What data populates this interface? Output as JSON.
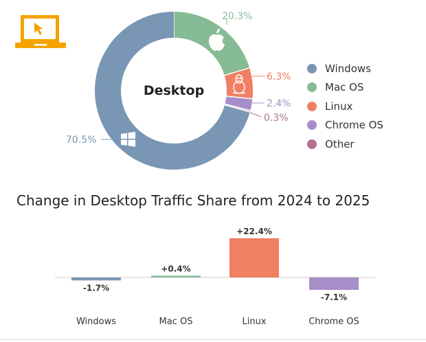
{
  "colors": {
    "windows": "#7997b4",
    "macos": "#87bb96",
    "linux": "#f07f63",
    "chromeos": "#a88dc8",
    "other": "#b37090",
    "laptop_orange": "#f5a300"
  },
  "icons": [
    "laptop-cursor-icon",
    "apple-icon",
    "linux-tux-icon",
    "windows-icon"
  ],
  "donut": {
    "center_label": "Desktop",
    "callouts": {
      "windows": "70.5%",
      "macos": "20.3%",
      "linux": "6.3%",
      "chromeos": "2.4%",
      "other": "0.3%"
    }
  },
  "legend": {
    "items": [
      {
        "label": "Windows",
        "color": "#7997b4"
      },
      {
        "label": "Mac OS",
        "color": "#87bb96"
      },
      {
        "label": "Linux",
        "color": "#f07f63"
      },
      {
        "label": "Chrome OS",
        "color": "#a88dc8"
      },
      {
        "label": "Other",
        "color": "#b37090"
      }
    ]
  },
  "bar_section": {
    "title": "Change in Desktop Traffic Share from 2024 to 2025"
  },
  "chart_data": [
    {
      "type": "pie",
      "title": "Desktop",
      "categories": [
        "Windows",
        "Mac OS",
        "Linux",
        "Chrome OS",
        "Other"
      ],
      "values": [
        70.5,
        20.3,
        6.3,
        2.4,
        0.3
      ],
      "value_labels": [
        "70.5%",
        "20.3%",
        "6.3%",
        "2.4%",
        "0.3%"
      ],
      "colors": [
        "#7997b4",
        "#87bb96",
        "#f07f63",
        "#a88dc8",
        "#b37090"
      ],
      "donut": true,
      "legend": "right"
    },
    {
      "type": "bar",
      "title": "Change in Desktop Traffic Share from 2024 to 2025",
      "categories": [
        "Windows",
        "Mac OS",
        "Linux",
        "Chrome OS"
      ],
      "values": [
        -1.7,
        0.4,
        22.4,
        -7.1
      ],
      "value_labels": [
        "-1.7%",
        "+0.4%",
        "+22.4%",
        "-7.1%"
      ],
      "colors": [
        "#7997b4",
        "#87bb96",
        "#f07f63",
        "#a88dc8"
      ],
      "xlabel": "",
      "ylabel": "",
      "ylim": [
        -8,
        23
      ],
      "grid": false
    }
  ]
}
